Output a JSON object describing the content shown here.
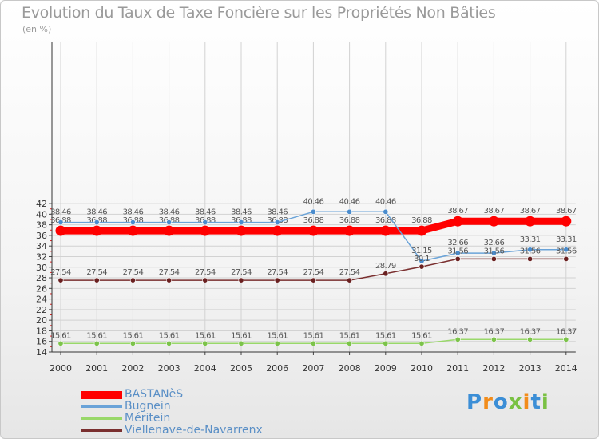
{
  "header": {
    "title": "Evolution du Taux de Taxe Foncière sur les Propriétés Non Bâties",
    "subtitle": "(en %)"
  },
  "brand": {
    "text": "Proxiti",
    "colors": [
      "#3b8ed6",
      "#f28c1a",
      "#3b8ed6",
      "#7ac143",
      "#f28c1a",
      "#3b8ed6",
      "#7ac143"
    ]
  },
  "chart_data": {
    "type": "line",
    "x": [
      "2000",
      "2001",
      "2002",
      "2003",
      "2004",
      "2005",
      "2006",
      "2007",
      "2008",
      "2009",
      "2010",
      "2011",
      "2012",
      "2013",
      "2014"
    ],
    "ylim": [
      14,
      42
    ],
    "yticks": [
      14,
      16,
      18,
      20,
      22,
      24,
      26,
      28,
      30,
      32,
      34,
      36,
      38,
      40,
      42
    ],
    "grid": true,
    "legend_position": "bottom-left",
    "series": [
      {
        "name": "BASTANèS",
        "color": "#ff0000",
        "values": [
          36.88,
          36.88,
          36.88,
          36.88,
          36.88,
          36.88,
          36.88,
          36.88,
          36.88,
          36.88,
          36.88,
          38.67,
          38.67,
          38.67,
          38.67
        ],
        "labels": [
          "36.88",
          "36.88",
          "36.88",
          "36.88",
          "36.88",
          "36.88",
          "36.88",
          "36.88",
          "36.88",
          "36.88",
          "36.88",
          "38.67",
          "38.67",
          "38.67",
          "38.67"
        ]
      },
      {
        "name": "Bugnein",
        "color": "#6aa3d8",
        "values": [
          38.46,
          38.46,
          38.46,
          38.46,
          38.46,
          38.46,
          38.46,
          40.46,
          40.46,
          40.46,
          31.15,
          32.66,
          32.66,
          33.31,
          33.31
        ],
        "labels": [
          "38.46",
          "38.46",
          "38.46",
          "38.46",
          "38.46",
          "38.46",
          "38.46",
          "40.46",
          "40.46",
          "40.46",
          "31.15",
          "32.66",
          "32.66",
          "33.31",
          "33.31"
        ]
      },
      {
        "name": "Méritein",
        "color": "#99d86a",
        "values": [
          15.61,
          15.61,
          15.61,
          15.61,
          15.61,
          15.61,
          15.61,
          15.61,
          15.61,
          15.61,
          15.61,
          16.37,
          16.37,
          16.37,
          16.37
        ],
        "labels": [
          "15.61",
          "15.61",
          "15.61",
          "15.61",
          "15.61",
          "15.61",
          "15.61",
          "15.61",
          "15.61",
          "15.61",
          "15.61",
          "16.37",
          "16.37",
          "16.37",
          "16.37"
        ]
      },
      {
        "name": "Viellenave-de-Navarrenx",
        "color": "#7a2f2f",
        "values": [
          27.54,
          27.54,
          27.54,
          27.54,
          27.54,
          27.54,
          27.54,
          27.54,
          27.54,
          28.79,
          30.1,
          31.56,
          31.56,
          31.56,
          31.56
        ],
        "labels": [
          "27.54",
          "27.54",
          "27.54",
          "27.54",
          "27.54",
          "27.54",
          "27.54",
          "27.54",
          "27.54",
          "28.79",
          "30.1",
          "31.56",
          "31.56",
          "31.56",
          "31.56"
        ]
      }
    ]
  }
}
